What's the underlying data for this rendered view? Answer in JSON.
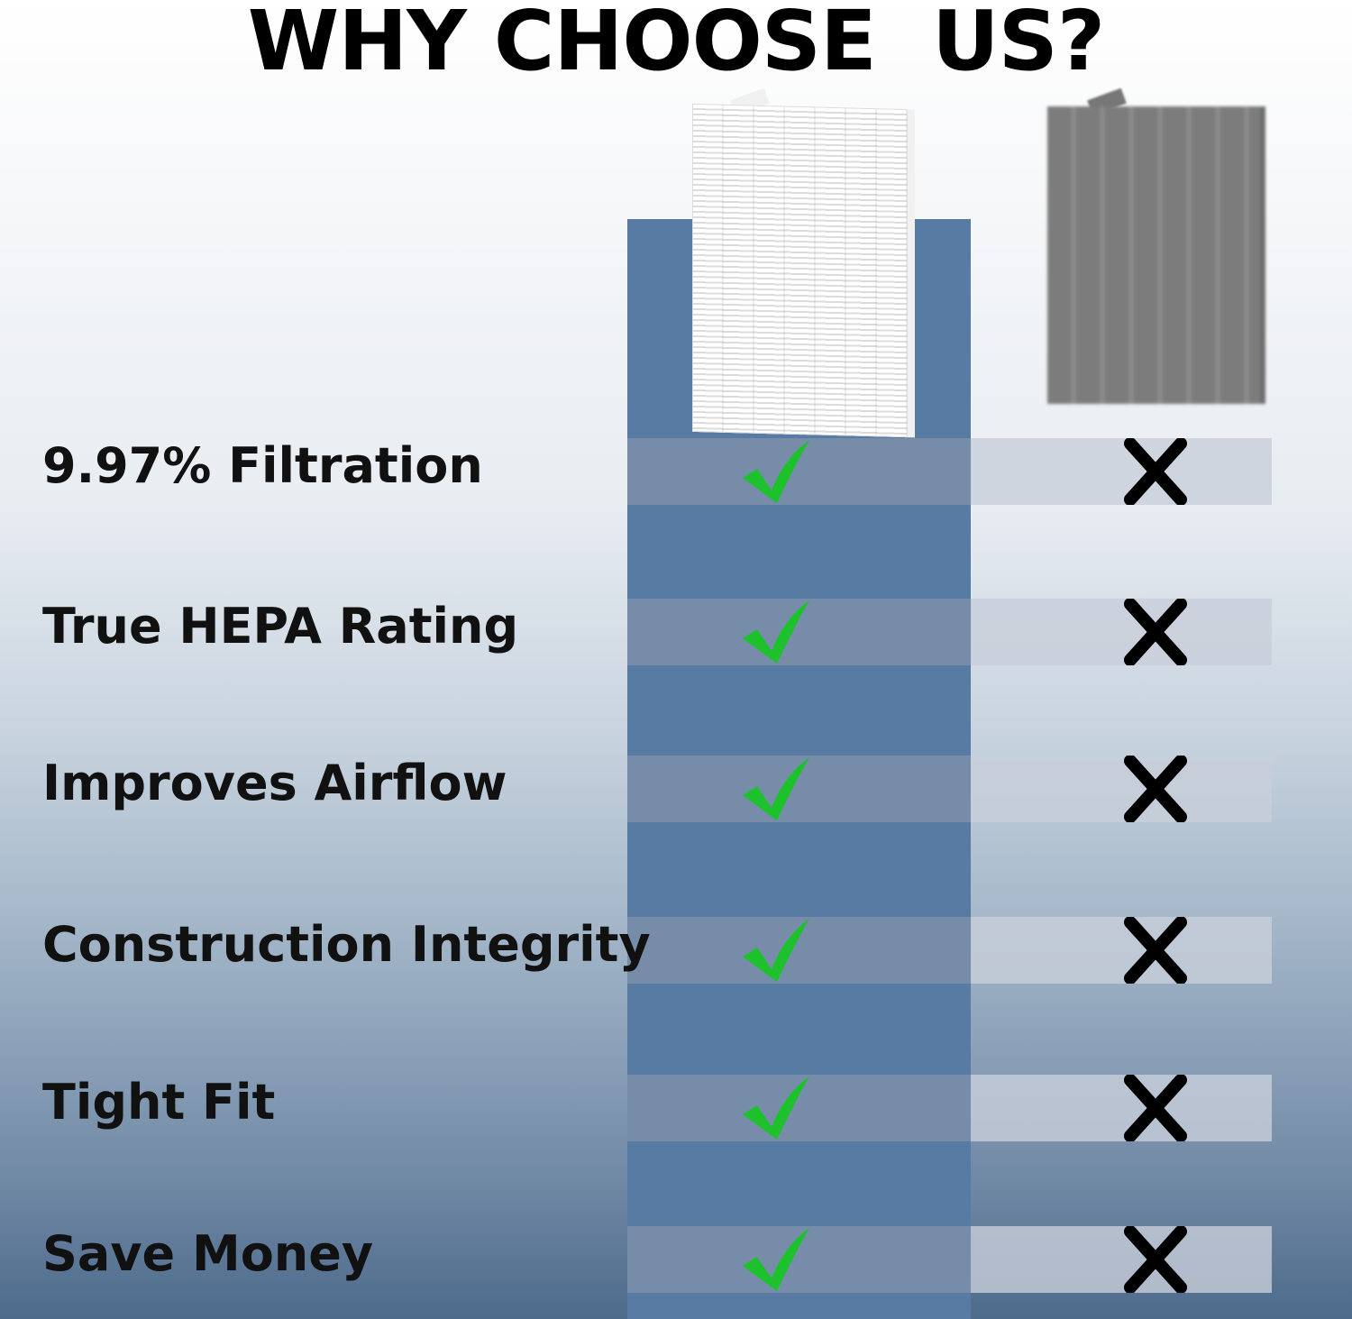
{
  "title": "WHY CHOOSE  US?",
  "colors": {
    "our_column": "#587ba3",
    "check": "#1cc12c",
    "cross": "#000000"
  },
  "columns": [
    {
      "product": "white-hepa-filter-image",
      "icon": "check-icon"
    },
    {
      "product": "grey-generic-filter-image",
      "icon": "cross-icon"
    }
  ],
  "rows": [
    {
      "label": "9.97% Filtration",
      "ours": true,
      "theirs": false
    },
    {
      "label": "True HEPA Rating",
      "ours": true,
      "theirs": false
    },
    {
      "label": "Improves Airflow",
      "ours": true,
      "theirs": false
    },
    {
      "label": "Construction Integrity",
      "ours": true,
      "theirs": false
    },
    {
      "label": "Tight Fit",
      "ours": true,
      "theirs": false
    },
    {
      "label": "Save Money",
      "ours": true,
      "theirs": false
    }
  ]
}
